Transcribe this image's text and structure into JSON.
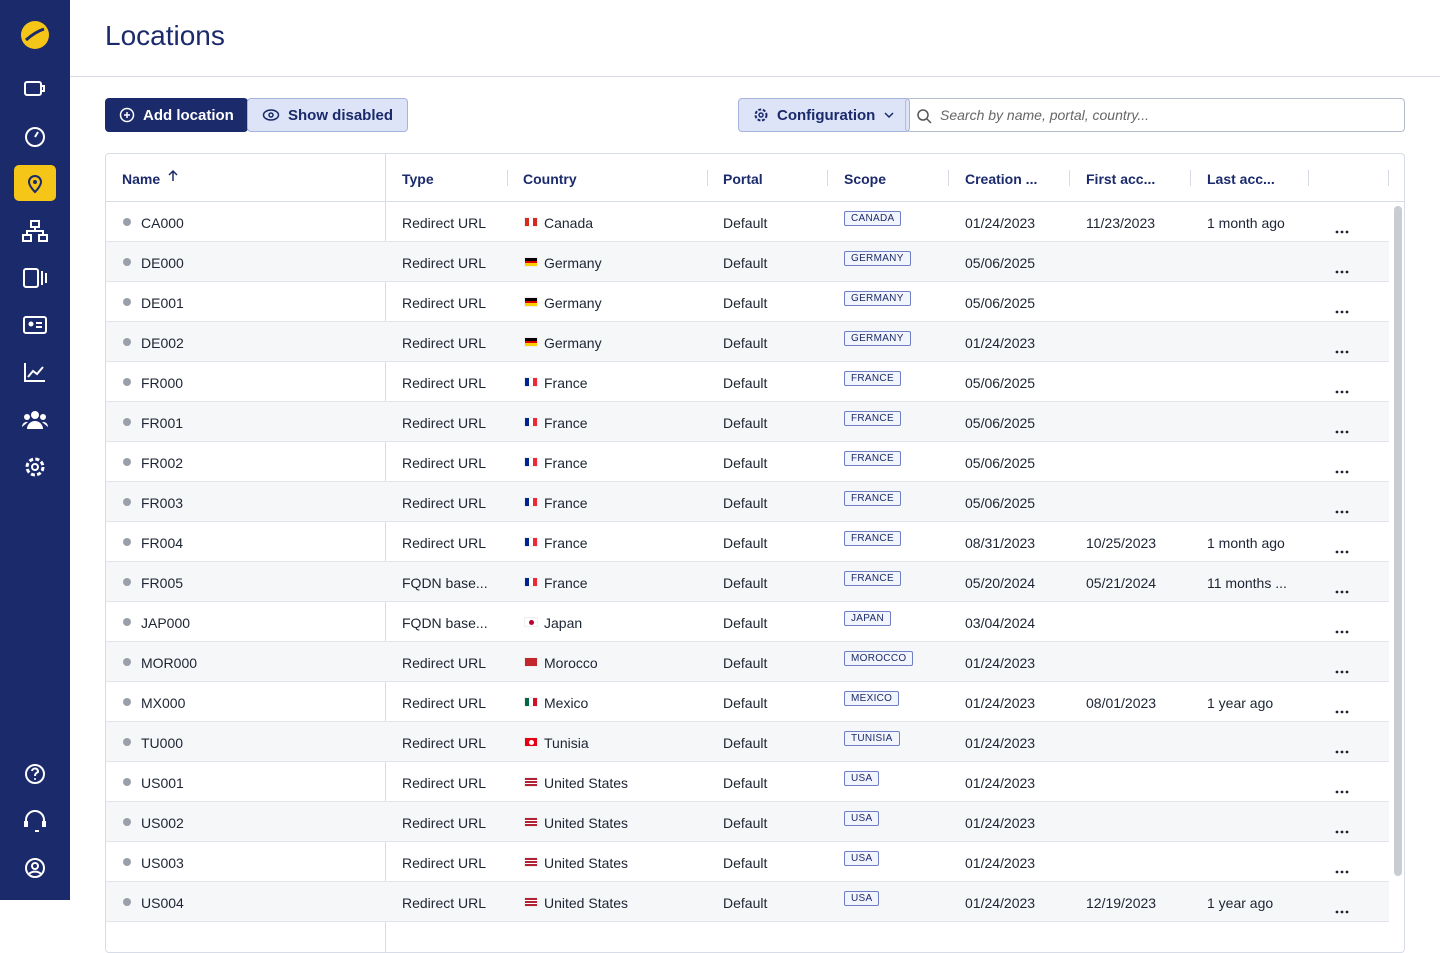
{
  "header": {
    "title": "Locations"
  },
  "toolbar": {
    "add": "Add location",
    "show_disabled": "Show disabled",
    "configuration": "Configuration",
    "search_placeholder": "Search by name, portal, country..."
  },
  "table": {
    "columns": [
      "Name",
      "Type",
      "Country",
      "Portal",
      "Scope",
      "Creation ...",
      "First acc...",
      "Last acc..."
    ],
    "rows": [
      {
        "name": "CA000",
        "type": "Redirect URL",
        "country": "Canada",
        "flag": {
          "dir": "v",
          "colors": [
            "#d52b1e",
            "#ffffff",
            "#d52b1e"
          ]
        },
        "portal": "Default",
        "scope": "CANADA",
        "created": "01/24/2023",
        "first": "11/23/2023",
        "last": "1 month ago"
      },
      {
        "name": "DE000",
        "type": "Redirect URL",
        "country": "Germany",
        "flag": {
          "dir": "h",
          "colors": [
            "#000000",
            "#dd0000",
            "#ffce00"
          ]
        },
        "portal": "Default",
        "scope": "GERMANY",
        "created": "05/06/2025"
      },
      {
        "name": "DE001",
        "type": "Redirect URL",
        "country": "Germany",
        "flag": {
          "dir": "h",
          "colors": [
            "#000000",
            "#dd0000",
            "#ffce00"
          ]
        },
        "portal": "Default",
        "scope": "GERMANY",
        "created": "05/06/2025"
      },
      {
        "name": "DE002",
        "type": "Redirect URL",
        "country": "Germany",
        "flag": {
          "dir": "h",
          "colors": [
            "#000000",
            "#dd0000",
            "#ffce00"
          ]
        },
        "portal": "Default",
        "scope": "GERMANY",
        "created": "01/24/2023"
      },
      {
        "name": "FR000",
        "type": "Redirect URL",
        "country": "France",
        "flag": {
          "dir": "v",
          "colors": [
            "#002395",
            "#ffffff",
            "#ed2939"
          ]
        },
        "portal": "Default",
        "scope": "FRANCE",
        "created": "05/06/2025"
      },
      {
        "name": "FR001",
        "type": "Redirect URL",
        "country": "France",
        "flag": {
          "dir": "v",
          "colors": [
            "#002395",
            "#ffffff",
            "#ed2939"
          ]
        },
        "portal": "Default",
        "scope": "FRANCE",
        "created": "05/06/2025"
      },
      {
        "name": "FR002",
        "type": "Redirect URL",
        "country": "France",
        "flag": {
          "dir": "v",
          "colors": [
            "#002395",
            "#ffffff",
            "#ed2939"
          ]
        },
        "portal": "Default",
        "scope": "FRANCE",
        "created": "05/06/2025"
      },
      {
        "name": "FR003",
        "type": "Redirect URL",
        "country": "France",
        "flag": {
          "dir": "v",
          "colors": [
            "#002395",
            "#ffffff",
            "#ed2939"
          ]
        },
        "portal": "Default",
        "scope": "FRANCE",
        "created": "05/06/2025"
      },
      {
        "name": "FR004",
        "type": "Redirect URL",
        "country": "France",
        "flag": {
          "dir": "v",
          "colors": [
            "#002395",
            "#ffffff",
            "#ed2939"
          ]
        },
        "portal": "Default",
        "scope": "FRANCE",
        "created": "08/31/2023",
        "first": "10/25/2023",
        "last": "1 month ago"
      },
      {
        "name": "FR005",
        "type": "FQDN base...",
        "country": "France",
        "flag": {
          "dir": "v",
          "colors": [
            "#002395",
            "#ffffff",
            "#ed2939"
          ]
        },
        "portal": "Default",
        "scope": "FRANCE",
        "created": "05/20/2024",
        "first": "05/21/2024",
        "last": "11 months ..."
      },
      {
        "name": "JAP000",
        "type": "FQDN base...",
        "country": "Japan",
        "flag": {
          "dir": "dot",
          "colors": [
            "#ffffff",
            "#bc002d"
          ]
        },
        "portal": "Default",
        "scope": "JAPAN",
        "created": "03/04/2024"
      },
      {
        "name": "MOR000",
        "type": "Redirect URL",
        "country": "Morocco",
        "flag": {
          "dir": "v",
          "colors": [
            "#c1272d"
          ]
        },
        "portal": "Default",
        "scope": "MOROCCO",
        "created": "01/24/2023"
      },
      {
        "name": "MX000",
        "type": "Redirect URL",
        "country": "Mexico",
        "flag": {
          "dir": "v",
          "colors": [
            "#006847",
            "#ffffff",
            "#ce1126"
          ]
        },
        "portal": "Default",
        "scope": "MEXICO",
        "created": "01/24/2023",
        "first": "08/01/2023",
        "last": "1 year ago"
      },
      {
        "name": "TU000",
        "type": "Redirect URL",
        "country": "Tunisia",
        "flag": {
          "dir": "dot",
          "colors": [
            "#e70013",
            "#ffffff"
          ]
        },
        "portal": "Default",
        "scope": "TUNISIA",
        "created": "01/24/2023"
      },
      {
        "name": "US001",
        "type": "Redirect URL",
        "country": "United States",
        "flag": {
          "dir": "h",
          "colors": [
            "#b22234",
            "#ffffff",
            "#b22234",
            "#ffffff",
            "#b22234"
          ]
        },
        "portal": "Default",
        "scope": "USA",
        "created": "01/24/2023"
      },
      {
        "name": "US002",
        "type": "Redirect URL",
        "country": "United States",
        "flag": {
          "dir": "h",
          "colors": [
            "#b22234",
            "#ffffff",
            "#b22234",
            "#ffffff",
            "#b22234"
          ]
        },
        "portal": "Default",
        "scope": "USA",
        "created": "01/24/2023"
      },
      {
        "name": "US003",
        "type": "Redirect URL",
        "country": "United States",
        "flag": {
          "dir": "h",
          "colors": [
            "#b22234",
            "#ffffff",
            "#b22234",
            "#ffffff",
            "#b22234"
          ]
        },
        "portal": "Default",
        "scope": "USA",
        "created": "01/24/2023"
      },
      {
        "name": "US004",
        "type": "Redirect URL",
        "country": "United States",
        "flag": {
          "dir": "h",
          "colors": [
            "#b22234",
            "#ffffff",
            "#b22234",
            "#ffffff",
            "#b22234"
          ]
        },
        "portal": "Default",
        "scope": "USA",
        "created": "01/24/2023",
        "first": "12/19/2023",
        "last": "1 year ago"
      }
    ]
  }
}
